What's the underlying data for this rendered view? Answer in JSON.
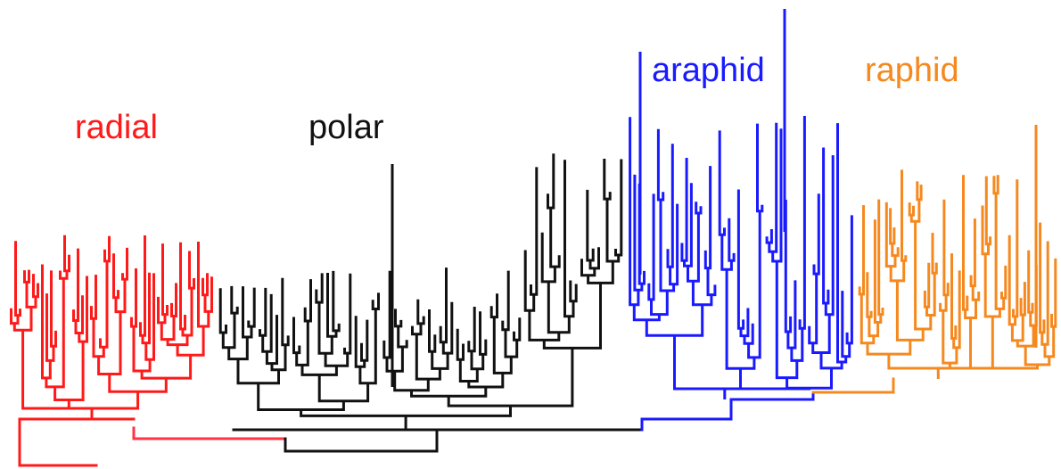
{
  "labels": {
    "radial": "radial",
    "polar": "polar",
    "araphid": "araphid",
    "raphid": "raphid"
  },
  "colors": {
    "radial": "#ff1a1a",
    "polar": "#111111",
    "araphid": "#1a1aff",
    "raphid": "#f5891f"
  },
  "clades": [
    {
      "key": "radial",
      "label": "radial",
      "leaf_count": 46
    },
    {
      "key": "polar",
      "label": "polar",
      "leaf_count": 72
    },
    {
      "key": "araphid",
      "label": "araphid",
      "leaf_count": 48
    },
    {
      "key": "raphid",
      "label": "raphid",
      "leaf_count": 52
    }
  ]
}
